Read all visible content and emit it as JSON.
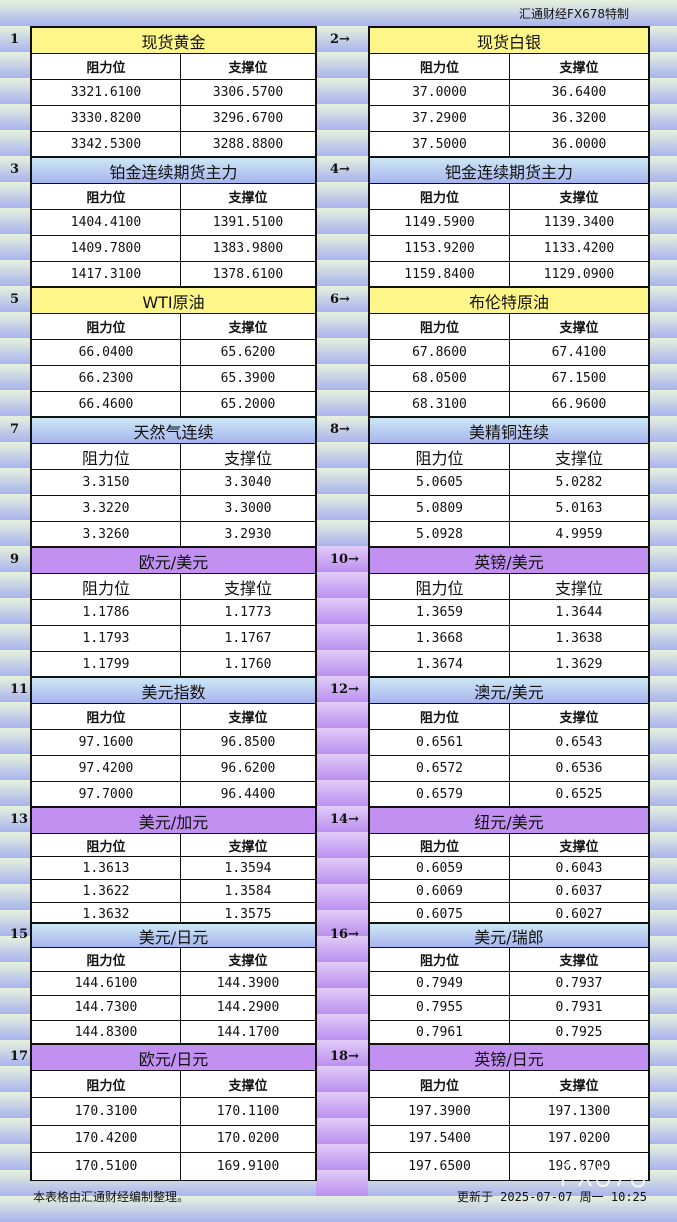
{
  "brand": "汇通财经FX678特制",
  "labels": {
    "resistance": "阻力位",
    "support": "支撑位"
  },
  "sections": [
    {
      "no": "1",
      "name": "现货黄金",
      "color": "yellow",
      "rows": [
        [
          "3321.6100",
          "3306.5700"
        ],
        [
          "3330.8200",
          "3296.6700"
        ],
        [
          "3342.5300",
          "3288.8800"
        ]
      ]
    },
    {
      "no": "2→",
      "name": "现货白银",
      "color": "yellow",
      "rows": [
        [
          "37.0000",
          "36.6400"
        ],
        [
          "37.2900",
          "36.3200"
        ],
        [
          "37.5000",
          "36.0000"
        ]
      ]
    },
    {
      "no": "3",
      "name": "铂金连续期货主力",
      "color": "blue",
      "rows": [
        [
          "1404.4100",
          "1391.5100"
        ],
        [
          "1409.7800",
          "1383.9800"
        ],
        [
          "1417.3100",
          "1378.6100"
        ]
      ]
    },
    {
      "no": "4→",
      "name": "钯金连续期货主力",
      "color": "blue",
      "rows": [
        [
          "1149.5900",
          "1139.3400"
        ],
        [
          "1153.9200",
          "1133.4200"
        ],
        [
          "1159.8400",
          "1129.0900"
        ]
      ]
    },
    {
      "no": "5",
      "name": "WTI原油",
      "color": "yellow",
      "rows": [
        [
          "66.0400",
          "65.6200"
        ],
        [
          "66.2300",
          "65.3900"
        ],
        [
          "66.4600",
          "65.2000"
        ]
      ]
    },
    {
      "no": "6→",
      "name": "布伦特原油",
      "color": "yellow",
      "rows": [
        [
          "67.8600",
          "67.4100"
        ],
        [
          "68.0500",
          "67.1500"
        ],
        [
          "68.3100",
          "66.9600"
        ]
      ]
    },
    {
      "no": "7",
      "name": "天然气连续",
      "color": "blue",
      "rows": [
        [
          "3.3150",
          "3.3040"
        ],
        [
          "3.3220",
          "3.3000"
        ],
        [
          "3.3260",
          "3.2930"
        ]
      ]
    },
    {
      "no": "8→",
      "name": "美精铜连续",
      "color": "blue",
      "rows": [
        [
          "5.0605",
          "5.0282"
        ],
        [
          "5.0809",
          "5.0163"
        ],
        [
          "5.0928",
          "4.9959"
        ]
      ]
    },
    {
      "no": "9",
      "name": "欧元/美元",
      "color": "purple",
      "rows": [
        [
          "1.1786",
          "1.1773"
        ],
        [
          "1.1793",
          "1.1767"
        ],
        [
          "1.1799",
          "1.1760"
        ]
      ]
    },
    {
      "no": "10→",
      "name": "英镑/美元",
      "color": "purple",
      "rows": [
        [
          "1.3659",
          "1.3644"
        ],
        [
          "1.3668",
          "1.3638"
        ],
        [
          "1.3674",
          "1.3629"
        ]
      ]
    },
    {
      "no": "11",
      "name": "美元指数",
      "color": "blue",
      "rows": [
        [
          "97.1600",
          "96.8500"
        ],
        [
          "97.4200",
          "96.6200"
        ],
        [
          "97.7000",
          "96.4400"
        ]
      ]
    },
    {
      "no": "12→",
      "name": "澳元/美元",
      "color": "blue",
      "rows": [
        [
          "0.6561",
          "0.6543"
        ],
        [
          "0.6572",
          "0.6536"
        ],
        [
          "0.6579",
          "0.6525"
        ]
      ]
    },
    {
      "no": "13",
      "name": "美元/加元",
      "color": "purple",
      "rows": [
        [
          "1.3613",
          "1.3594"
        ],
        [
          "1.3622",
          "1.3584"
        ],
        [
          "1.3632",
          "1.3575"
        ]
      ]
    },
    {
      "no": "14→",
      "name": "纽元/美元",
      "color": "purple",
      "rows": [
        [
          "0.6059",
          "0.6043"
        ],
        [
          "0.6069",
          "0.6037"
        ],
        [
          "0.6075",
          "0.6027"
        ]
      ]
    },
    {
      "no": "15",
      "name": "美元/日元",
      "color": "blue",
      "rows": [
        [
          "144.6100",
          "144.3900"
        ],
        [
          "144.7300",
          "144.2900"
        ],
        [
          "144.8300",
          "144.1700"
        ]
      ]
    },
    {
      "no": "16→",
      "name": "美元/瑞郎",
      "color": "blue",
      "rows": [
        [
          "0.7949",
          "0.7937"
        ],
        [
          "0.7955",
          "0.7931"
        ],
        [
          "0.7961",
          "0.7925"
        ]
      ]
    },
    {
      "no": "17",
      "name": "欧元/日元",
      "color": "purple",
      "rows": [
        [
          "170.3100",
          "170.1100"
        ],
        [
          "170.4200",
          "170.0200"
        ],
        [
          "170.5100",
          "169.9100"
        ]
      ]
    },
    {
      "no": "18→",
      "name": "英镑/日元",
      "color": "purple",
      "rows": [
        [
          "197.3900",
          "197.1300"
        ],
        [
          "197.5400",
          "197.0200"
        ],
        [
          "197.6500",
          "196.8700"
        ]
      ]
    }
  ],
  "footer": {
    "note": "本表格由汇通财经编制整理。",
    "updated": "更新于 2025-07-07 周一 10:25"
  },
  "watermark": "FX678"
}
